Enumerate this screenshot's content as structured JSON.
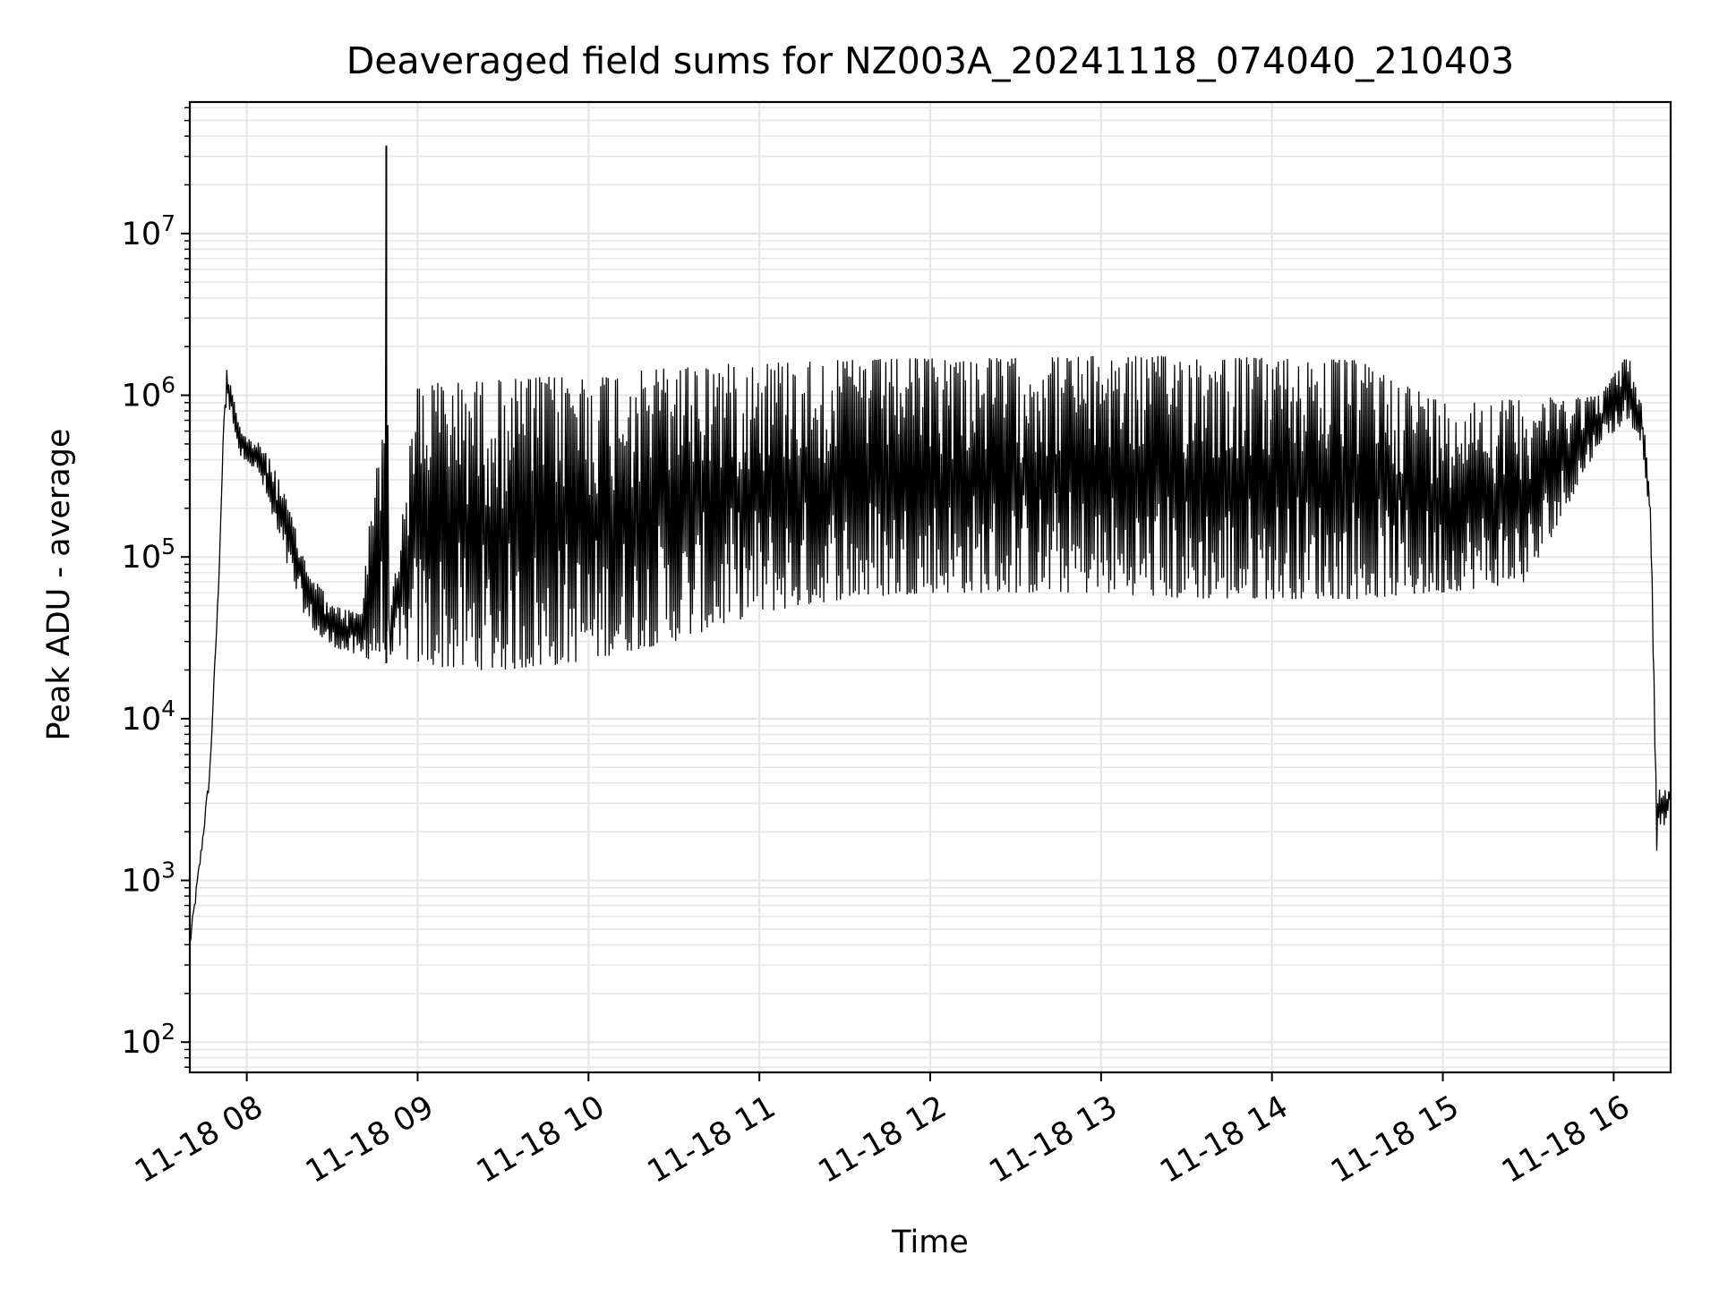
{
  "chart_data": {
    "type": "line",
    "title": "Deaveraged field sums for NZ003A_20241118_074040_210403",
    "xlabel": "Time",
    "ylabel": "Peak ADU - average",
    "yscale": "log",
    "ylim": [
      65,
      65000000
    ],
    "xlim": [
      "2024-11-18 07:40",
      "2024-11-18 16:20"
    ],
    "grid": true,
    "line_color": "#000000",
    "x_ticks": [
      "11-18 08",
      "11-18 09",
      "11-18 10",
      "11-18 11",
      "11-18 12",
      "11-18 13",
      "11-18 14",
      "11-18 15",
      "11-18 16"
    ],
    "x_tick_times": [
      "2024-11-18 08:00",
      "2024-11-18 09:00",
      "2024-11-18 10:00",
      "2024-11-18 11:00",
      "2024-11-18 12:00",
      "2024-11-18 13:00",
      "2024-11-18 14:00",
      "2024-11-18 15:00",
      "2024-11-18 16:00"
    ],
    "y_ticks": [
      {
        "base": "10",
        "exp": "2",
        "value": 100
      },
      {
        "base": "10",
        "exp": "3",
        "value": 1000
      },
      {
        "base": "10",
        "exp": "4",
        "value": 10000
      },
      {
        "base": "10",
        "exp": "5",
        "value": 100000
      },
      {
        "base": "10",
        "exp": "6",
        "value": 1000000
      },
      {
        "base": "10",
        "exp": "7",
        "value": 10000000
      }
    ],
    "series": [
      {
        "x": [
          "2024-11-18 07:40",
          "2024-11-18 07:44",
          "2024-11-18 07:47",
          "2024-11-18 07:50",
          "2024-11-18 07:52",
          "2024-11-18 07:53",
          "2024-11-18 07:55",
          "2024-11-18 07:58",
          "2024-11-18 08:00",
          "2024-11-18 08:05",
          "2024-11-18 08:10",
          "2024-11-18 08:15",
          "2024-11-18 08:20",
          "2024-11-18 08:25",
          "2024-11-18 08:30",
          "2024-11-18 08:40",
          "2024-11-18 08:48",
          "2024-11-18 08:49",
          "2024-11-18 08:50",
          "2024-11-18 09:00",
          "2024-11-18 09:15",
          "2024-11-18 09:30",
          "2024-11-18 09:45",
          "2024-11-18 10:00",
          "2024-11-18 10:30",
          "2024-11-18 11:00",
          "2024-11-18 11:30",
          "2024-11-18 12:00",
          "2024-11-18 12:30",
          "2024-11-18 13:00",
          "2024-11-18 13:30",
          "2024-11-18 14:00",
          "2024-11-18 14:30",
          "2024-11-18 15:00",
          "2024-11-18 15:30",
          "2024-11-18 15:55",
          "2024-11-18 16:05",
          "2024-11-18 16:10",
          "2024-11-18 16:13",
          "2024-11-18 16:15",
          "2024-11-18 16:20"
        ],
        "peak": [
          400,
          1500,
          4500,
          60000,
          700000,
          1500000,
          1100000,
          600000,
          550000,
          500000,
          350000,
          200000,
          100000,
          70000,
          50000,
          45000,
          1200000,
          35000000,
          40000,
          1200000,
          1200000,
          1250000,
          1300000,
          1300000,
          1500000,
          1600000,
          1650000,
          1700000,
          1700000,
          1750000,
          1750000,
          1700000,
          1650000,
          900000,
          950000,
          1000000,
          1800000,
          900000,
          200000,
          4000,
          3500
        ],
        "trough": [
          400,
          1500,
          4500,
          60000,
          700000,
          900000,
          700000,
          400000,
          400000,
          300000,
          150000,
          80000,
          45000,
          32000,
          28000,
          24000,
          22000,
          22000,
          25000,
          22000,
          20000,
          20000,
          21000,
          23000,
          30000,
          45000,
          55000,
          60000,
          60000,
          60000,
          55000,
          55000,
          55000,
          60000,
          70000,
          500000,
          700000,
          500000,
          150000,
          1500,
          3000
        ]
      }
    ]
  }
}
